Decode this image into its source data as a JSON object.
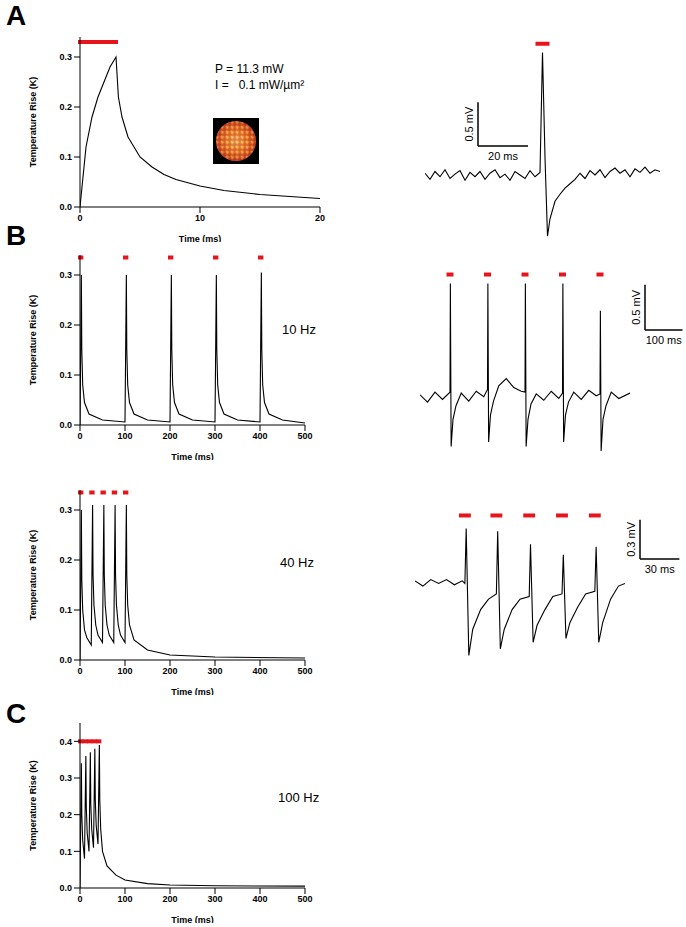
{
  "panel_labels": [
    "A",
    "B",
    "C"
  ],
  "chart_data": [
    {
      "type": "line",
      "xlabel": "Time (ms)",
      "ylabel": "Temperature Rise (K)",
      "color": "#000000",
      "annotations": [
        "P = 11.3 mW",
        "I =   0.1 mW/µm²"
      ],
      "xlim": [
        0,
        20
      ],
      "xticks": [
        0,
        10,
        20
      ],
      "ylim": [
        0,
        0.34
      ],
      "yticks": [
        {
          "value": 0,
          "label": "0.0"
        },
        0.1,
        0.2,
        0.3
      ],
      "x": [
        0,
        0.5,
        1,
        1.5,
        2,
        2.5,
        3,
        3.2,
        3.5,
        4,
        4.5,
        5,
        6,
        7,
        8,
        10,
        12,
        15,
        20
      ],
      "values": [
        0,
        0.12,
        0.18,
        0.22,
        0.25,
        0.28,
        0.3,
        0.22,
        0.18,
        0.14,
        0.12,
        0.1,
        0.08,
        0.065,
        0.055,
        0.042,
        0.033,
        0.025,
        0.017
      ],
      "stimuli": [
        [
          0,
          3
        ]
      ],
      "stim_level": 0.33
    },
    {
      "type": "line",
      "tick_labels": false,
      "color": "#000000",
      "xlim": [
        0,
        94
      ],
      "ylim": [
        -0.8,
        1.6
      ],
      "x": [
        0,
        2,
        4,
        6,
        8,
        10,
        12,
        14,
        16,
        18,
        20,
        22,
        24,
        26,
        28,
        30,
        32,
        34,
        36,
        38,
        40,
        42,
        44,
        46,
        47,
        48,
        49,
        50,
        52,
        54,
        56,
        58,
        60,
        62,
        64,
        66,
        68,
        70,
        72,
        74,
        76,
        78,
        80,
        82,
        84,
        86,
        88,
        90,
        92,
        94
      ],
      "values": [
        0.02,
        -0.05,
        0.04,
        -0.02,
        0.06,
        -0.04,
        0.01,
        0.05,
        -0.06,
        0.03,
        -0.02,
        0.04,
        -0.05,
        0.02,
        0.06,
        -0.03,
        0.01,
        -0.06,
        0.04,
        0.0,
        -0.04,
        0.05,
        -0.02,
        0.03,
        1.4,
        0.2,
        -0.7,
        -0.5,
        -0.3,
        -0.22,
        -0.15,
        -0.1,
        -0.05,
        0.02,
        -0.04,
        0.05,
        0.0,
        0.06,
        -0.03,
        0.04,
        0.08,
        0.02,
        0.06,
        -0.02,
        0.07,
        0.03,
        0.09,
        0.02,
        0.06,
        0.04
      ],
      "stimuli": [
        [
          45,
          49
        ]
      ],
      "stim_level": 1.5,
      "scale_bar": {
        "x": 20,
        "x_label": "20 ms",
        "y": 0.5,
        "y_label": "0.5 mV"
      }
    },
    {
      "type": "line",
      "xlabel": "Time (ms)",
      "ylabel": "Temperature Rise (K)",
      "color": "#000000",
      "annotation": "10 Hz",
      "xlim": [
        0,
        500
      ],
      "xticks": [
        0,
        100,
        200,
        300,
        400,
        500
      ],
      "ylim": [
        0,
        0.34
      ],
      "yticks": [
        {
          "value": 0,
          "label": "0.0"
        },
        0.1,
        0.2,
        0.3
      ],
      "x": [
        0,
        3,
        4,
        6,
        10,
        20,
        50,
        100,
        103,
        104,
        106,
        110,
        120,
        150,
        200,
        203,
        204,
        206,
        210,
        220,
        250,
        300,
        303,
        304,
        306,
        310,
        320,
        350,
        400,
        403,
        404,
        406,
        410,
        420,
        450,
        500
      ],
      "values": [
        0,
        0.3,
        0.15,
        0.08,
        0.045,
        0.022,
        0.01,
        0.006,
        0.3,
        0.15,
        0.08,
        0.045,
        0.022,
        0.01,
        0.006,
        0.3,
        0.15,
        0.08,
        0.045,
        0.022,
        0.01,
        0.006,
        0.3,
        0.15,
        0.08,
        0.045,
        0.022,
        0.01,
        0.006,
        0.305,
        0.15,
        0.08,
        0.045,
        0.022,
        0.01,
        0.004
      ],
      "stimuli": [
        [
          0,
          3
        ],
        [
          100,
          103
        ],
        [
          200,
          203
        ],
        [
          300,
          303
        ],
        [
          400,
          403
        ]
      ],
      "stim_level": 0.335
    },
    {
      "type": "line",
      "tick_labels": false,
      "color": "#000000",
      "xlim": [
        0,
        560
      ],
      "ylim": [
        -0.7,
        1.4
      ],
      "x": [
        0,
        20,
        40,
        60,
        80,
        81,
        83,
        88,
        96,
        110,
        130,
        150,
        170,
        180,
        181,
        183,
        188,
        196,
        210,
        230,
        250,
        270,
        280,
        281,
        283,
        288,
        296,
        310,
        330,
        350,
        370,
        380,
        381,
        383,
        388,
        396,
        410,
        430,
        450,
        470,
        480,
        481,
        483,
        488,
        496,
        510,
        530,
        560
      ],
      "values": [
        0.02,
        -0.06,
        0.05,
        -0.03,
        0.05,
        1.25,
        -0.55,
        -0.25,
        -0.1,
        0.04,
        -0.05,
        0.06,
        0.0,
        0.08,
        1.25,
        -0.5,
        -0.2,
        -0.05,
        0.12,
        0.2,
        0.1,
        0.06,
        0.05,
        1.25,
        -0.55,
        -0.25,
        -0.08,
        0.03,
        -0.04,
        0.06,
        -0.02,
        0.04,
        1.25,
        -0.5,
        -0.2,
        -0.06,
        0.05,
        -0.03,
        0.07,
        0.01,
        0.03,
        0.95,
        -0.6,
        -0.25,
        -0.1,
        0.05,
        -0.02,
        0.04
      ],
      "stimuli": [
        [
          76,
          84
        ],
        [
          176,
          184
        ],
        [
          276,
          284
        ],
        [
          376,
          384
        ],
        [
          476,
          484
        ]
      ],
      "stim_level": 1.35,
      "scale_bar": {
        "x": 100,
        "x_label": "100 ms",
        "y": 0.5,
        "y_label": "0.5 mV"
      }
    },
    {
      "type": "line",
      "xlabel": "Time (ms)",
      "ylabel": "Temperature Rise (K)",
      "color": "#000000",
      "annotation": "40 Hz",
      "xlim": [
        0,
        500
      ],
      "xticks": [
        0,
        100,
        200,
        300,
        400,
        500
      ],
      "ylim": [
        0,
        0.34
      ],
      "yticks": [
        {
          "value": 0,
          "label": "0.0"
        },
        0.1,
        0.2,
        0.3
      ],
      "x": [
        0,
        3,
        4,
        6,
        10,
        15,
        25,
        28,
        29,
        31,
        35,
        40,
        50,
        53,
        54,
        56,
        60,
        65,
        75,
        78,
        79,
        81,
        85,
        90,
        100,
        103,
        104,
        106,
        110,
        120,
        150,
        200,
        300,
        500
      ],
      "values": [
        0,
        0.3,
        0.16,
        0.1,
        0.06,
        0.045,
        0.03,
        0.31,
        0.17,
        0.11,
        0.07,
        0.05,
        0.035,
        0.31,
        0.17,
        0.11,
        0.07,
        0.05,
        0.035,
        0.31,
        0.17,
        0.11,
        0.07,
        0.05,
        0.035,
        0.31,
        0.17,
        0.11,
        0.07,
        0.04,
        0.02,
        0.01,
        0.006,
        0.004
      ],
      "stimuli": [
        [
          0,
          3
        ],
        [
          25,
          28
        ],
        [
          50,
          53
        ],
        [
          75,
          78
        ],
        [
          100,
          103
        ]
      ],
      "stim_level": 0.335
    },
    {
      "type": "line",
      "tick_labels": false,
      "color": "#000000",
      "xlim": [
        0,
        160
      ],
      "ylim": [
        -0.7,
        0.6
      ],
      "x": [
        0,
        6,
        12,
        18,
        24,
        30,
        36,
        38,
        39,
        41,
        44,
        50,
        56,
        62,
        63,
        65,
        68,
        74,
        80,
        87,
        88,
        90,
        93,
        99,
        105,
        112,
        113,
        115,
        118,
        124,
        130,
        137,
        138,
        140,
        143,
        149,
        155,
        160
      ],
      "values": [
        0.02,
        -0.02,
        0.03,
        0.0,
        0.03,
        -0.01,
        0.02,
        0.0,
        0.42,
        -0.55,
        -0.35,
        -0.2,
        -0.12,
        -0.08,
        0.4,
        -0.5,
        -0.35,
        -0.2,
        -0.12,
        -0.1,
        0.3,
        -0.45,
        -0.32,
        -0.2,
        -0.1,
        -0.08,
        0.22,
        -0.42,
        -0.3,
        -0.18,
        -0.08,
        -0.06,
        0.28,
        -0.45,
        -0.3,
        -0.12,
        -0.02,
        0.0
      ],
      "stimuli": [
        [
          35,
          41
        ],
        [
          59,
          65
        ],
        [
          84,
          90
        ],
        [
          109,
          115
        ],
        [
          134,
          140
        ]
      ],
      "stim_level": 0.52,
      "scale_bar": {
        "x": 30,
        "x_label": "30 ms",
        "y": 0.3,
        "y_label": "0.3 mV"
      }
    },
    {
      "type": "line",
      "xlabel": "Time (ms)",
      "ylabel": "Temperature Rise (K)",
      "color": "#000000",
      "annotation": "100 Hz",
      "xlim": [
        0,
        500
      ],
      "xticks": [
        0,
        100,
        200,
        300,
        400,
        500
      ],
      "ylim": [
        0,
        0.45
      ],
      "yticks": [
        {
          "value": 0,
          "label": "0.0"
        },
        0.1,
        0.2,
        0.3,
        0.4
      ],
      "x": [
        0,
        3,
        4,
        6,
        10,
        13,
        14,
        16,
        20,
        23,
        24,
        26,
        30,
        33,
        34,
        36,
        40,
        43,
        44,
        46,
        50,
        60,
        80,
        100,
        150,
        200,
        300,
        500
      ],
      "values": [
        0,
        0.34,
        0.2,
        0.13,
        0.08,
        0.36,
        0.22,
        0.15,
        0.1,
        0.37,
        0.23,
        0.16,
        0.11,
        0.38,
        0.24,
        0.17,
        0.12,
        0.39,
        0.24,
        0.16,
        0.1,
        0.06,
        0.035,
        0.022,
        0.012,
        0.008,
        0.006,
        0.005
      ],
      "stimuli": [
        [
          0,
          3
        ],
        [
          10,
          13
        ],
        [
          20,
          23
        ],
        [
          30,
          33
        ],
        [
          40,
          43
        ]
      ],
      "stim_level": 0.4
    }
  ]
}
